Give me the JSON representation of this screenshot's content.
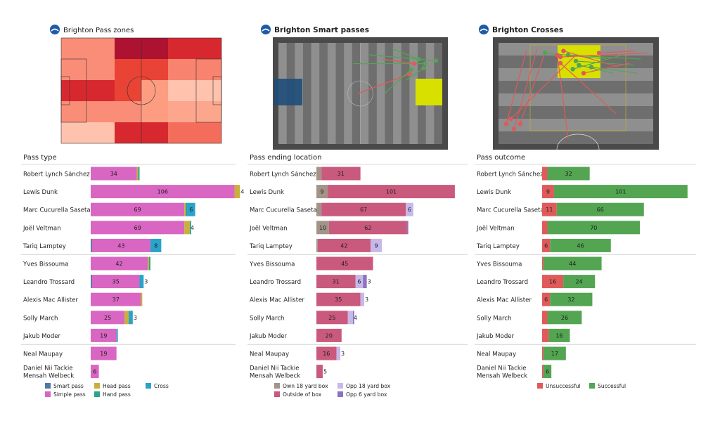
{
  "colors": {
    "smart_pass": "#4e79a7",
    "simple_pass": "#d966c2",
    "head_pass": "#c9b03a",
    "hand_pass": "#2ca48b",
    "cross": "#29a3c9",
    "own_18": "#a39488",
    "outside_box": "#c9597d",
    "opp_18": "#c8b8ea",
    "opp_6": "#8c72c0",
    "unsuccessful": "#e05a5a",
    "successful": "#53a552",
    "pitch_dark": "#4a4a4a",
    "pitch_stripe": "#8f8f8f"
  },
  "panels": [
    {
      "title": "Brighton Pass zones",
      "subtitle": "Pass type"
    },
    {
      "title": "Brighton Smart passes",
      "subtitle": "Pass ending location"
    },
    {
      "title": "Brighton Crosses",
      "subtitle": "Pass outcome"
    }
  ],
  "players": [
    "Robert Lynch Sánchez",
    "Lewis Dunk",
    "Marc Cucurella Saseta",
    "Joël Veltman",
    "Tariq Lamptey",
    "Yves Bissouma",
    "Leandro Trossard",
    "Alexis Mac Allister",
    "Solly March",
    "Jakub Moder",
    "Neal Maupay",
    "Daniel Nii Tackie\nMensah Welbeck"
  ],
  "legends": [
    [
      {
        "label": "Smart pass",
        "color": "#4e79a7"
      },
      {
        "label": "Head pass",
        "color": "#c9b03a"
      },
      {
        "label": "Cross",
        "color": "#29a3c9"
      },
      {
        "label": "Simple pass",
        "color": "#d966c2"
      },
      {
        "label": "Hand pass",
        "color": "#2ca48b"
      }
    ],
    [
      {
        "label": "Own 18 yard box",
        "color": "#a39488"
      },
      {
        "label": "Opp 18 yard box",
        "color": "#c8b8ea"
      },
      {
        "label": "Outside of box",
        "color": "#c9597d"
      },
      {
        "label": "Opp 6 yard box",
        "color": "#8c72c0"
      }
    ],
    [
      {
        "label": "Unsuccessful",
        "color": "#e05a5a"
      },
      {
        "label": "Successful",
        "color": "#53a552"
      }
    ]
  ],
  "chart_data": [
    {
      "type": "heatmap",
      "title": "Brighton Pass zones",
      "grid": [
        [
          "#fa8d78",
          "#ae1231",
          "#ae1231",
          "#d8282f"
        ],
        [
          "#fa8d78",
          "#e94335",
          "#e94335",
          "#f8836f"
        ],
        [
          "#d8282f",
          "#e94335",
          "#fc9d82",
          "#fec2ad"
        ],
        [
          "#fa8d78",
          "#fa8d78",
          "#fc9d82",
          "#fca68d"
        ],
        [
          "#fec2ad",
          "#d8282f",
          "#d8282f",
          "#f46c5a"
        ]
      ]
    },
    {
      "type": "scatter",
      "title": "Brighton Smart passes",
      "field": {
        "length": 105,
        "width": 68
      },
      "passes": [
        {
          "x1": 51,
          "y1": 34,
          "x2": 84,
          "y2": 21,
          "outcome": "unsuccessful"
        },
        {
          "x1": 68,
          "y1": 34,
          "x2": 85,
          "y2": 18,
          "outcome": "successful"
        },
        {
          "x1": 82,
          "y1": 25,
          "x2": 93,
          "y2": 17,
          "outcome": "successful"
        },
        {
          "x1": 73,
          "y1": 4,
          "x2": 90,
          "y2": 11,
          "outcome": "successful"
        },
        {
          "x1": 48,
          "y1": 14,
          "x2": 94,
          "y2": 14,
          "outcome": "successful"
        },
        {
          "x1": 58,
          "y1": 8,
          "x2": 101,
          "y2": 12,
          "outcome": "successful"
        },
        {
          "x1": 67,
          "y1": 11,
          "x2": 87,
          "y2": 14,
          "outcome": "unsuccessful"
        }
      ]
    },
    {
      "type": "scatter",
      "title": "Brighton Crosses",
      "crosses": [
        {
          "x1": 5,
          "y1": 80,
          "x2": 18,
          "y2": 8,
          "outcome": "unsuccessful"
        },
        {
          "x1": 10,
          "y1": 85,
          "x2": 25,
          "y2": 6,
          "outcome": "unsuccessful"
        },
        {
          "x1": 14,
          "y1": 80,
          "x2": 30,
          "y2": 10,
          "outcome": "unsuccessful"
        },
        {
          "x1": 8,
          "y1": 75,
          "x2": 50,
          "y2": 12,
          "outcome": "unsuccessful"
        },
        {
          "x1": 30,
          "y1": 10,
          "x2": 70,
          "y2": 16,
          "outcome": "successful"
        },
        {
          "x1": 45,
          "y1": 12,
          "x2": 92,
          "y2": 16,
          "outcome": "successful"
        },
        {
          "x1": 50,
          "y1": 18,
          "x2": 88,
          "y2": 22,
          "outcome": "successful"
        },
        {
          "x1": 48,
          "y1": 26,
          "x2": 80,
          "y2": 12,
          "outcome": "successful"
        },
        {
          "x1": 55,
          "y1": 30,
          "x2": 85,
          "y2": 20,
          "outcome": "unsuccessful"
        },
        {
          "x1": 60,
          "y1": 24,
          "x2": 90,
          "y2": 30,
          "outcome": "successful"
        },
        {
          "x1": 40,
          "y1": 14,
          "x2": 96,
          "y2": 10,
          "outcome": "unsuccessful"
        },
        {
          "x1": 42,
          "y1": 8,
          "x2": 78,
          "y2": 24,
          "outcome": "unsuccessful"
        },
        {
          "x1": 40,
          "y1": 20,
          "x2": 76,
          "y2": 70,
          "outcome": "unsuccessful"
        },
        {
          "x1": 38,
          "y1": 12,
          "x2": 45,
          "y2": 95,
          "outcome": "unsuccessful"
        },
        {
          "x1": 65,
          "y1": 10,
          "x2": 88,
          "y2": 8,
          "outcome": "unsuccessful"
        },
        {
          "x1": 52,
          "y1": 22,
          "x2": 74,
          "y2": 30,
          "outcome": "successful"
        }
      ]
    },
    {
      "type": "bar",
      "title": "Pass type",
      "stacked": true,
      "categories": [
        "Robert Lynch Sánchez",
        "Lewis Dunk",
        "Marc Cucurella Saseta",
        "Joël Veltman",
        "Tariq Lamptey",
        "Yves Bissouma",
        "Leandro Trossard",
        "Alexis Mac Allister",
        "Solly March",
        "Jakub Moder",
        "Neal Maupay",
        "Daniel Nii Tackie Mensah Welbeck"
      ],
      "series": [
        {
          "name": "Smart pass",
          "values": [
            0,
            0,
            0,
            0,
            1,
            0,
            1,
            0,
            0,
            0,
            0,
            0
          ]
        },
        {
          "name": "Simple pass",
          "values": [
            34,
            106,
            69,
            69,
            43,
            42,
            35,
            37,
            25,
            19,
            19,
            6
          ]
        },
        {
          "name": "Head pass",
          "values": [
            1,
            4,
            1,
            4,
            0,
            1,
            0,
            1,
            3,
            0,
            0,
            0
          ]
        },
        {
          "name": "Hand pass",
          "values": [
            1,
            0,
            1,
            1,
            0,
            1,
            0,
            0,
            0,
            0,
            0,
            0
          ]
        },
        {
          "name": "Cross",
          "values": [
            0,
            0,
            6,
            0,
            8,
            0,
            3,
            0,
            3,
            1,
            0,
            0
          ]
        }
      ],
      "xlim": [
        0,
        112
      ]
    },
    {
      "type": "bar",
      "title": "Pass ending location",
      "stacked": true,
      "categories": [
        "Robert Lynch Sánchez",
        "Lewis Dunk",
        "Marc Cucurella Saseta",
        "Joël Veltman",
        "Tariq Lamptey",
        "Yves Bissouma",
        "Leandro Trossard",
        "Alexis Mac Allister",
        "Solly March",
        "Jakub Moder",
        "Neal Maupay",
        "Daniel Nii Tackie Mensah Welbeck"
      ],
      "series": [
        {
          "name": "Own 18 yard box",
          "values": [
            4,
            9,
            4,
            10,
            1,
            0,
            0,
            0,
            0,
            0,
            0,
            0
          ]
        },
        {
          "name": "Outside of box",
          "values": [
            31,
            101,
            67,
            62,
            42,
            45,
            31,
            35,
            25,
            20,
            16,
            5
          ]
        },
        {
          "name": "Opp 18 yard box",
          "values": [
            0,
            0,
            6,
            0,
            9,
            0,
            6,
            3,
            4,
            0,
            3,
            0
          ]
        },
        {
          "name": "Opp 6 yard box",
          "values": [
            0,
            0,
            0,
            1,
            0,
            0,
            3,
            0,
            1,
            0,
            0,
            0
          ]
        }
      ],
      "xlim": [
        0,
        112
      ]
    },
    {
      "type": "bar",
      "title": "Pass outcome",
      "stacked": true,
      "categories": [
        "Robert Lynch Sánchez",
        "Lewis Dunk",
        "Marc Cucurella Saseta",
        "Joël Veltman",
        "Tariq Lamptey",
        "Yves Bissouma",
        "Leandro Trossard",
        "Alexis Mac Allister",
        "Solly March",
        "Jakub Moder",
        "Neal Maupay",
        "Daniel Nii Tackie Mensah Welbeck"
      ],
      "series": [
        {
          "name": "Unsuccessful",
          "values": [
            4,
            9,
            11,
            4,
            6,
            1,
            16,
            6,
            4,
            5,
            1,
            1
          ]
        },
        {
          "name": "Successful",
          "values": [
            32,
            101,
            66,
            70,
            46,
            44,
            24,
            32,
            26,
            16,
            17,
            6
          ]
        }
      ],
      "xlim": [
        0,
        112
      ]
    }
  ]
}
